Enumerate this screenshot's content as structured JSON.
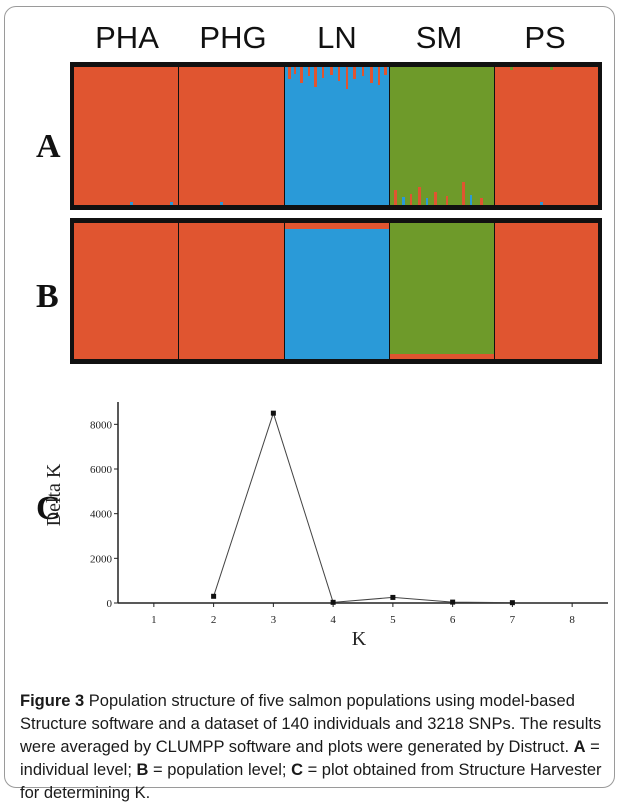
{
  "populations": [
    "PHA",
    "PHG",
    "LN",
    "SM",
    "PS"
  ],
  "colors": {
    "orange": "#E05530",
    "blue": "#2A9AD8",
    "green": "#6E9A2A",
    "border": "#111111"
  },
  "panels": {
    "a": "A",
    "b": "B",
    "c": "C"
  },
  "caption": {
    "figure_label": "Figure 3",
    "text_1": " Population structure of five salmon populations using model-based Structure software and a dataset of 140 individuals and 3218 SNPs. The results were averaged by CLUMPP software and plots were generated by Distruct. ",
    "a_label": "A",
    "a_text": " = individual level; ",
    "b_label": "B",
    "b_text": " = population level; ",
    "c_label": "C",
    "c_text": " = plot obtained from Structure Harvester for determining K."
  },
  "chart_data": {
    "type": "line",
    "xlabel": "K",
    "ylabel": "Delta K",
    "x": [
      2,
      3,
      4,
      5,
      6,
      7
    ],
    "y": [
      300,
      8500,
      30,
      250,
      40,
      15
    ],
    "xticks": [
      "1",
      "2",
      "3",
      "4",
      "5",
      "6",
      "7",
      "8"
    ],
    "yticks": [
      "0",
      "2000",
      "4000",
      "6000",
      "8000"
    ],
    "xlim": [
      0.4,
      8.6
    ],
    "ylim": [
      0,
      9000
    ]
  }
}
